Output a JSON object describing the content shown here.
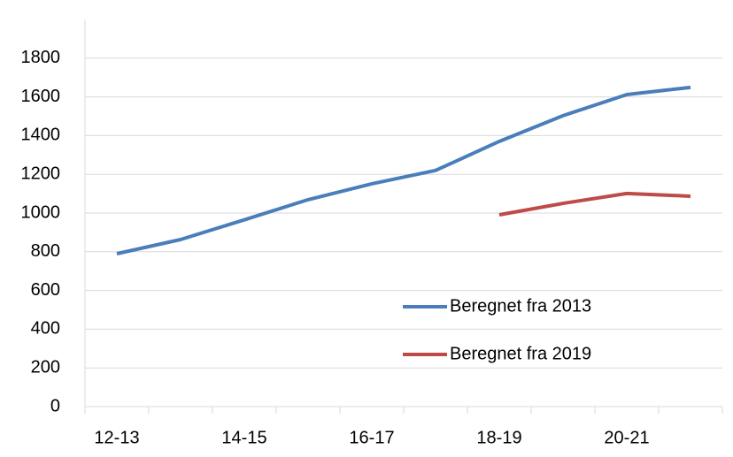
{
  "chart_data": {
    "type": "line",
    "categories": [
      "12-13",
      null,
      "14-15",
      null,
      "16-17",
      null,
      "18-19",
      null,
      "20-21",
      null
    ],
    "series": [
      {
        "name": "Beregnet fra 2013",
        "color": "#4a7ebb",
        "values": [
          790,
          863,
          965,
          1069,
          1151,
          1220,
          1370,
          1503,
          1612,
          1649
        ]
      },
      {
        "name": "Beregnet fra 2019",
        "color": "#be4b48",
        "values": [
          null,
          null,
          null,
          null,
          null,
          null,
          991,
          1050,
          1101,
          1087
        ]
      }
    ],
    "ylim": [
      0,
      2000
    ],
    "yticks": [
      0,
      200,
      400,
      600,
      800,
      1000,
      1200,
      1400,
      1600,
      1800
    ],
    "grid": true
  }
}
